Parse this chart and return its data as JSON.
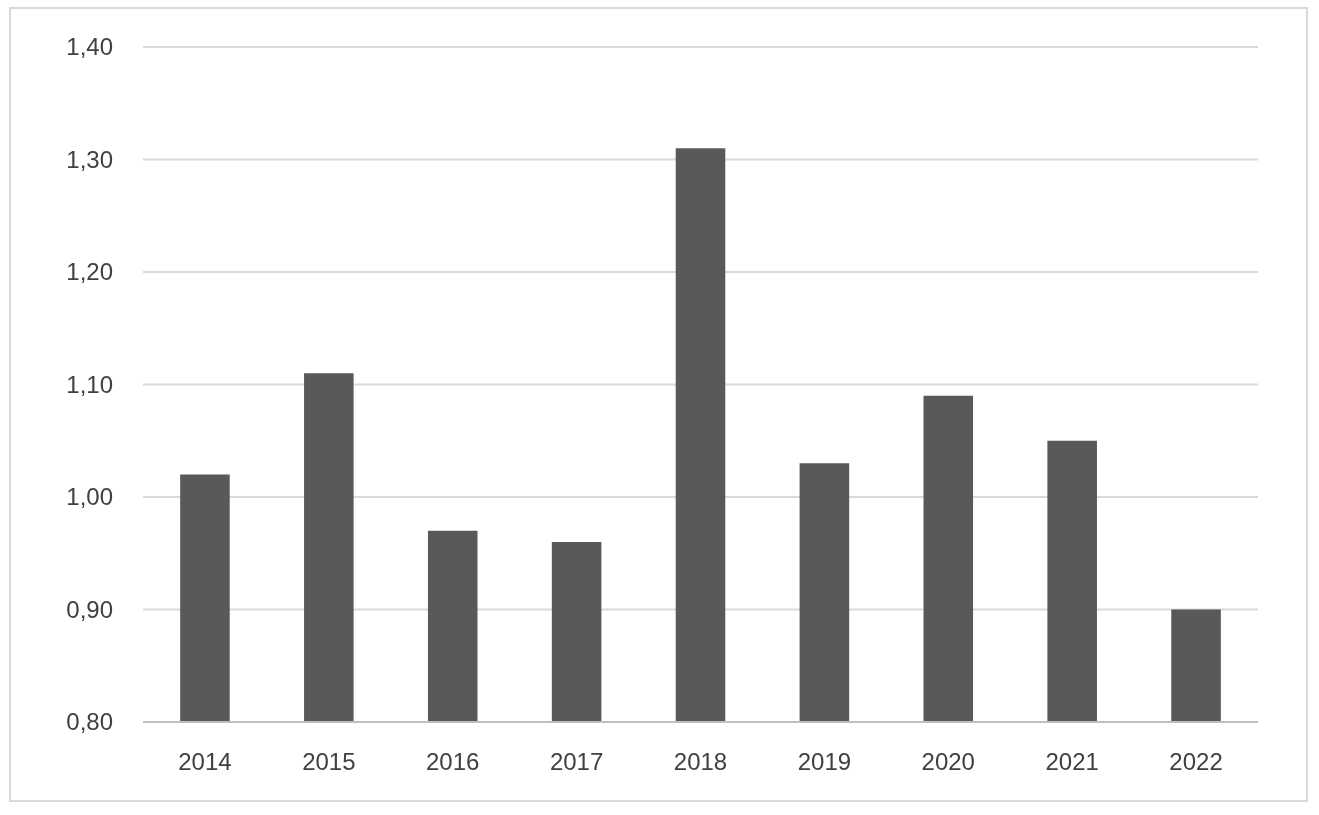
{
  "chart_data": {
    "type": "bar",
    "categories": [
      "2014",
      "2015",
      "2016",
      "2017",
      "2018",
      "2019",
      "2020",
      "2021",
      "2022"
    ],
    "values": [
      1.02,
      1.11,
      0.97,
      0.96,
      1.31,
      1.03,
      1.09,
      1.05,
      0.9
    ],
    "color": "#595959",
    "ylim": [
      0.8,
      1.4
    ],
    "yticks": [
      {
        "value": 0.8,
        "label": "0,80"
      },
      {
        "value": 0.9,
        "label": "0,90"
      },
      {
        "value": 1.0,
        "label": "1,00"
      },
      {
        "value": 1.1,
        "label": "1,10"
      },
      {
        "value": 1.2,
        "label": "1,20"
      },
      {
        "value": 1.3,
        "label": "1,30"
      },
      {
        "value": 1.4,
        "label": "1,40"
      }
    ],
    "grid": "y"
  }
}
